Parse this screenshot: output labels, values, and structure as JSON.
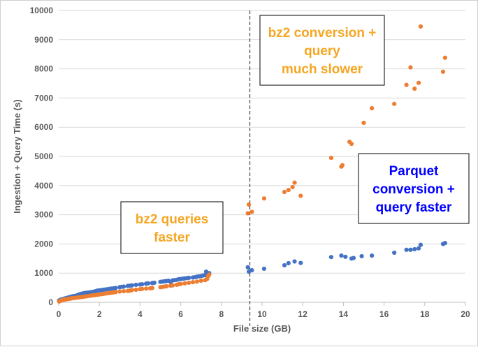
{
  "chart_data": {
    "type": "scatter",
    "xlabel": "File size (GB)",
    "ylabel": "Ingestion + Query Time (s)",
    "xlim": [
      0,
      20
    ],
    "ylim": [
      0,
      10000
    ],
    "x_ticks": [
      "0",
      "2",
      "4",
      "6",
      "8",
      "10",
      "12",
      "14",
      "16",
      "18",
      "20"
    ],
    "y_ticks": [
      "0",
      "1000",
      "2000",
      "3000",
      "4000",
      "5000",
      "6000",
      "7000",
      "8000",
      "9000",
      "10000"
    ],
    "grid": "horizontal",
    "legend": "none",
    "reference_line": {
      "x": 9.4,
      "style": "dashed"
    },
    "colors": {
      "blue": "#4472C4",
      "orange": "#ED7D31",
      "axis": "#595959",
      "grid": "#d9d9d9"
    },
    "annotations": [
      {
        "lines": [
          "bz2 queries",
          "faster"
        ],
        "color": "#F5A623"
      },
      {
        "lines": [
          "bz2 conversion +",
          "query",
          "much slower"
        ],
        "color": "#F5A623"
      },
      {
        "lines": [
          "Parquet",
          "conversion +",
          "query faster"
        ],
        "color": "#0000FF"
      }
    ],
    "series": [
      {
        "color": "#4472C4",
        "x": [
          0.02,
          0.05,
          0.08,
          0.1,
          0.15,
          0.2,
          0.25,
          0.3,
          0.35,
          0.4,
          0.45,
          0.5,
          0.55,
          0.6,
          0.65,
          0.7,
          0.8,
          0.9,
          1.0,
          1.1,
          1.15,
          1.2,
          1.3,
          1.4,
          1.5,
          1.6,
          1.7,
          1.8,
          1.9,
          2.0,
          2.1,
          2.2,
          2.3,
          2.4,
          2.5,
          2.6,
          2.7,
          2.8,
          3.0,
          3.1,
          3.2,
          3.4,
          3.5,
          3.6,
          3.8,
          4.0,
          4.1,
          4.3,
          4.4,
          4.6,
          4.7,
          5.0,
          5.1,
          5.2,
          5.3,
          5.4,
          5.5,
          5.6,
          5.7,
          5.8,
          5.9,
          6.0,
          6.1,
          6.2,
          6.3,
          6.4,
          6.6,
          6.7,
          6.8,
          6.9,
          7.0,
          7.1,
          7.2,
          7.25,
          7.3,
          7.4,
          9.3,
          9.35,
          9.5,
          10.1,
          11.1,
          11.3,
          11.6,
          11.9,
          13.4,
          13.9,
          14.1,
          14.4,
          14.5,
          14.9,
          15.4,
          16.5,
          17.1,
          17.3,
          17.5,
          17.7,
          17.8,
          18.9,
          19.0
        ],
        "y": [
          60,
          70,
          80,
          90,
          100,
          110,
          120,
          130,
          140,
          150,
          160,
          170,
          180,
          190,
          200,
          210,
          220,
          240,
          270,
          290,
          250,
          310,
          320,
          330,
          340,
          350,
          360,
          380,
          400,
          410,
          420,
          430,
          440,
          450,
          460,
          470,
          480,
          490,
          520,
          530,
          540,
          560,
          570,
          580,
          600,
          610,
          620,
          640,
          650,
          660,
          670,
          700,
          710,
          720,
          730,
          740,
          700,
          750,
          760,
          770,
          790,
          800,
          810,
          820,
          830,
          840,
          850,
          860,
          880,
          890,
          900,
          920,
          930,
          1050,
          960,
          1000,
          1200,
          1050,
          1100,
          1150,
          1270,
          1340,
          1400,
          1350,
          1550,
          1600,
          1560,
          1500,
          1520,
          1580,
          1600,
          1700,
          1800,
          1800,
          1820,
          1850,
          1970,
          2000,
          2030
        ]
      },
      {
        "color": "#ED7D31",
        "x": [
          0.02,
          0.05,
          0.08,
          0.1,
          0.15,
          0.2,
          0.25,
          0.3,
          0.35,
          0.4,
          0.45,
          0.5,
          0.55,
          0.6,
          0.65,
          0.7,
          0.8,
          0.9,
          1.0,
          1.1,
          1.2,
          1.3,
          1.4,
          1.5,
          1.6,
          1.7,
          1.8,
          1.9,
          2.0,
          2.1,
          2.2,
          2.3,
          2.4,
          2.5,
          2.6,
          2.7,
          2.8,
          3.0,
          3.2,
          3.4,
          3.5,
          3.6,
          3.8,
          4.0,
          4.1,
          4.3,
          4.5,
          4.6,
          5.0,
          5.1,
          5.2,
          5.3,
          5.5,
          5.6,
          5.8,
          5.9,
          6.0,
          6.2,
          6.4,
          6.6,
          6.8,
          7.0,
          7.2,
          7.3,
          7.35,
          7.4,
          9.3,
          9.35,
          9.5,
          10.1,
          11.1,
          11.3,
          11.5,
          11.6,
          11.9,
          13.4,
          13.9,
          13.95,
          14.3,
          14.4,
          15.0,
          15.4,
          16.5,
          17.1,
          17.3,
          17.5,
          17.7,
          17.8,
          18.9,
          19.0
        ],
        "y": [
          30,
          40,
          50,
          60,
          70,
          80,
          90,
          95,
          100,
          110,
          115,
          120,
          125,
          130,
          140,
          145,
          150,
          160,
          170,
          180,
          190,
          200,
          210,
          220,
          230,
          240,
          250,
          260,
          270,
          280,
          290,
          300,
          310,
          320,
          330,
          340,
          350,
          370,
          380,
          390,
          400,
          420,
          430,
          450,
          460,
          470,
          480,
          490,
          520,
          530,
          540,
          550,
          570,
          580,
          600,
          620,
          630,
          650,
          670,
          690,
          710,
          740,
          760,
          800,
          900,
          950,
          3050,
          3350,
          3100,
          3560,
          3780,
          3850,
          3950,
          4100,
          3650,
          4950,
          4650,
          4700,
          5500,
          5430,
          6150,
          6650,
          6800,
          7450,
          8050,
          7320,
          7520,
          9450,
          7900,
          8380
        ]
      }
    ]
  }
}
